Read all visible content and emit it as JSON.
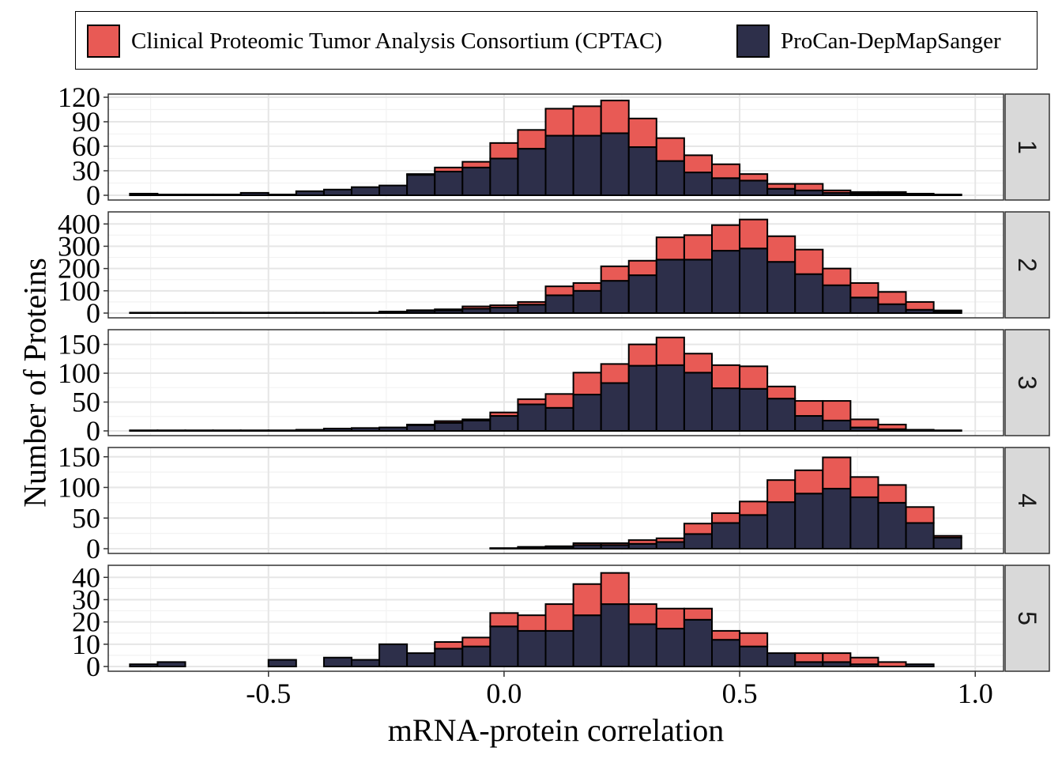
{
  "legend": {
    "items": [
      {
        "label": "Clinical Proteomic Tumor Analysis Consortium (CPTAC)",
        "color": "#E85A55"
      },
      {
        "label": "ProCan-DepMapSanger",
        "color": "#2D2F4A"
      }
    ],
    "placement": "top"
  },
  "chart_data": {
    "type": "bar",
    "subtype": "faceted stacked histogram",
    "xlabel": "mRNA-protein correlation",
    "ylabel": "Number of Proteins",
    "xlim": [
      -0.84,
      1.06
    ],
    "x_ticks": [
      "-0.5",
      "0.0",
      "0.5",
      "1.0"
    ],
    "bin_width": 0.0588,
    "bin_centers": [
      -0.7647,
      -0.7059,
      -0.6471,
      -0.5882,
      -0.5294,
      -0.4706,
      -0.4118,
      -0.3529,
      -0.2941,
      -0.2353,
      -0.1765,
      -0.1176,
      -0.0588,
      0.0,
      0.0588,
      0.1176,
      0.1765,
      0.2353,
      0.2941,
      0.3529,
      0.4118,
      0.4706,
      0.5294,
      0.5882,
      0.6471,
      0.7059,
      0.7647,
      0.8235,
      0.8824,
      0.9412
    ],
    "grid": true,
    "facets": [
      {
        "label": "1",
        "ylim": [
          0,
          120
        ],
        "yticks": [
          0,
          30,
          60,
          90,
          120
        ],
        "series": [
          {
            "name": "ProCan-DepMapSanger",
            "values": [
              2,
              1,
              1,
              1,
              3,
              1,
              5,
              7,
              10,
              12,
              25,
              29,
              34,
              45,
              57,
              73,
              73,
              76,
              59,
              42,
              28,
              21,
              18,
              8,
              6,
              3,
              2,
              2,
              1,
              1
            ]
          },
          {
            "name": "Clinical Proteomic Tumor Analysis Consortium (CPTAC)",
            "values": [
              0,
              0,
              0,
              0,
              0,
              0,
              0,
              0,
              0,
              0,
              1,
              5,
              7,
              19,
              23,
              33,
              36,
              40,
              35,
              28,
              21,
              17,
              8,
              6,
              8,
              3,
              2,
              2,
              1,
              0
            ]
          }
        ]
      },
      {
        "label": "2",
        "ylim": [
          0,
          440
        ],
        "yticks": [
          0,
          100,
          200,
          300,
          400
        ],
        "series": [
          {
            "name": "ProCan-DepMapSanger",
            "values": [
              2,
              2,
              2,
              2,
              2,
              2,
              2,
              2,
              2,
              5,
              10,
              12,
              20,
              25,
              38,
              80,
              100,
              145,
              170,
              240,
              240,
              280,
              290,
              230,
              175,
              125,
              70,
              40,
              15,
              8
            ]
          },
          {
            "name": "Clinical Proteomic Tumor Analysis Consortium (CPTAC)",
            "values": [
              0,
              0,
              0,
              0,
              0,
              0,
              0,
              0,
              0,
              2,
              3,
              5,
              10,
              10,
              12,
              40,
              35,
              65,
              65,
              100,
              110,
              115,
              130,
              115,
              110,
              75,
              65,
              55,
              35,
              4
            ]
          }
        ]
      },
      {
        "label": "3",
        "ylim": [
          0,
          170
        ],
        "yticks": [
          0,
          50,
          100,
          150
        ],
        "series": [
          {
            "name": "ProCan-DepMapSanger",
            "values": [
              1,
              1,
              1,
              1,
              1,
              1,
              2,
              4,
              5,
              6,
              10,
              14,
              18,
              26,
              46,
              40,
              63,
              83,
              113,
              114,
              101,
              74,
              73,
              56,
              26,
              18,
              6,
              3,
              2,
              1
            ]
          },
          {
            "name": "Clinical Proteomic Tumor Analysis Consortium (CPTAC)",
            "values": [
              0,
              0,
              0,
              0,
              0,
              0,
              0,
              0,
              0,
              0,
              1,
              3,
              2,
              6,
              9,
              24,
              38,
              33,
              37,
              48,
              33,
              40,
              39,
              21,
              26,
              34,
              14,
              8,
              0,
              0
            ]
          }
        ]
      },
      {
        "label": "4",
        "ylim": [
          0,
          160
        ],
        "yticks": [
          0,
          50,
          100,
          150
        ],
        "series": [
          {
            "name": "ProCan-DepMapSanger",
            "values": [
              0,
              0,
              0,
              0,
              0,
              0,
              0,
              0,
              0,
              0,
              0,
              0,
              0,
              1,
              2,
              3,
              6,
              6,
              8,
              11,
              24,
              42,
              55,
              76,
              90,
              98,
              84,
              75,
              42,
              18
            ]
          },
          {
            "name": "Clinical Proteomic Tumor Analysis Consortium (CPTAC)",
            "values": [
              0,
              0,
              0,
              0,
              0,
              0,
              0,
              0,
              0,
              0,
              0,
              0,
              0,
              0,
              1,
              1,
              3,
              3,
              6,
              6,
              17,
              16,
              22,
              36,
              38,
              51,
              33,
              29,
              26,
              3
            ]
          }
        ]
      },
      {
        "label": "5",
        "ylim": [
          0,
          44
        ],
        "yticks": [
          0,
          10,
          20,
          30,
          40
        ],
        "series": [
          {
            "name": "ProCan-DepMapSanger",
            "values": [
              1,
              2,
              0,
              0,
              0,
              3,
              0,
              4,
              3,
              10,
              6,
              8,
              9,
              18,
              16,
              16,
              23,
              28,
              19,
              17,
              21,
              12,
              9,
              6,
              2,
              2,
              1,
              0,
              1,
              0
            ]
          },
          {
            "name": "Clinical Proteomic Tumor Analysis Consortium (CPTAC)",
            "values": [
              0,
              0,
              0,
              0,
              0,
              0,
              0,
              0,
              0,
              0,
              0,
              3,
              4,
              6,
              7,
              12,
              14,
              14,
              9,
              9,
              5,
              4,
              6,
              0,
              4,
              4,
              3,
              2,
              0,
              0
            ]
          }
        ]
      }
    ]
  }
}
